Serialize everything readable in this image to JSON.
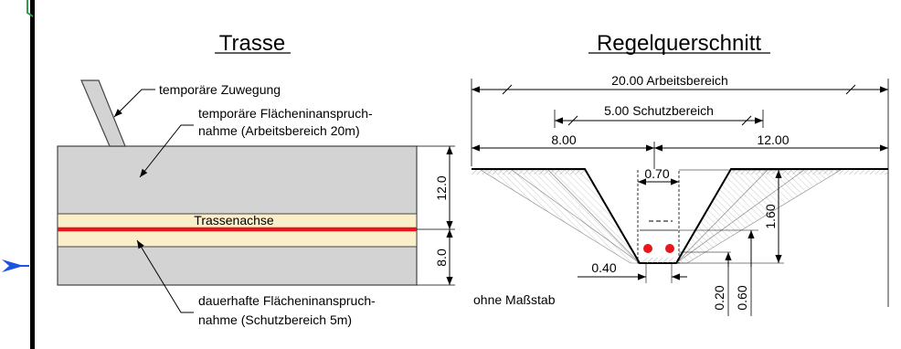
{
  "trasse": {
    "title": "Trasse",
    "label_zuwegung": "temporäre Zuwegung",
    "label_temp_1": "temporäre Flächeninanspruch-",
    "label_temp_2": "nahme (Arbeitsbereich 20m)",
    "label_achse": "Trassenachse",
    "label_perm_1": "dauerhafte Flächeninanspruch-",
    "label_perm_2": "nahme (Schutzbereich 5m)",
    "dim_upper": "12.0",
    "dim_lower": "8.0"
  },
  "regelquerschnitt": {
    "title": "Regelquerschnitt",
    "dim_arbeitsbereich": "20.00 Arbeitsbereich",
    "dim_schutzbereich": "5.00 Schutzbereich",
    "dim_left": "8.00",
    "dim_right": "12.00",
    "dim_width": "0.70",
    "dim_depth": "1.60",
    "dim_bottom": "0.40",
    "dim_v1": "0.20",
    "dim_v2": "0.60",
    "note": "ohne Maßstab"
  },
  "colors": {
    "band_grey": "#d3d3d3",
    "band_beige": "#fbefc9",
    "axis_red": "#e8161b",
    "accent_blue": "#1c53e6",
    "accent_green": "#2e9b4a"
  }
}
